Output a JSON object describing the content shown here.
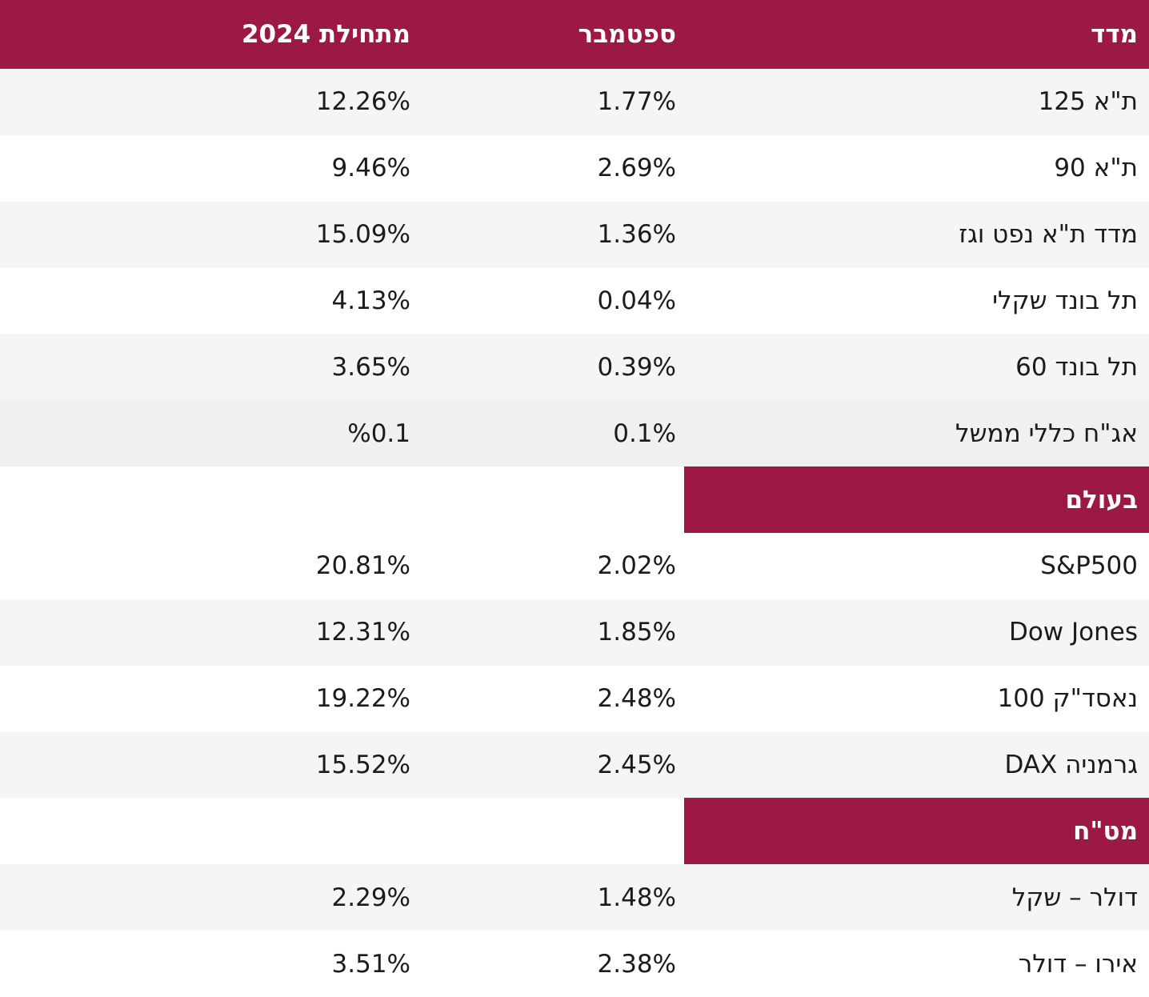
{
  "palette": {
    "header_bg": "#9b1942",
    "header_text": "#ffffff",
    "stripe": "#f5f5f5",
    "stripe_dark": "#f0f0f0",
    "row_white": "#ffffff",
    "text": "#1b1b1b"
  },
  "chart_data": {
    "type": "table",
    "direction": "rtl",
    "columns": [
      "מדד",
      "ספטמבר",
      "מתחילת 2024"
    ],
    "sections": [
      "",
      "בעולם",
      "מט\"ח"
    ],
    "rows": [
      {
        "kind": "data",
        "index": "ת\"א 125",
        "september": "1.77%",
        "ytd": "12.26%"
      },
      {
        "kind": "data",
        "index": "ת\"א 90",
        "september": "2.69%",
        "ytd": "9.46%"
      },
      {
        "kind": "data",
        "index": "מדד ת\"א נפט וגז",
        "september": "1.36%",
        "ytd": "15.09%"
      },
      {
        "kind": "data",
        "index": "תל בונד שקלי",
        "september": "0.04%",
        "ytd": "4.13%"
      },
      {
        "kind": "data",
        "index": "תל בונד 60",
        "september": "0.39%",
        "ytd": "3.65%"
      },
      {
        "kind": "data",
        "index": "אג\"ח כללי ממשל",
        "september": "0.1%",
        "ytd": "%0.1"
      },
      {
        "kind": "section",
        "index": "בעולם",
        "september": "",
        "ytd": ""
      },
      {
        "kind": "data",
        "index": "S&P500",
        "september": "2.02%",
        "ytd": "20.81%"
      },
      {
        "kind": "data",
        "index": "Dow Jones",
        "september": "1.85%",
        "ytd": "12.31%"
      },
      {
        "kind": "data",
        "index": "נאסד\"ק 100",
        "september": "2.48%",
        "ytd": "19.22%"
      },
      {
        "kind": "data",
        "index": "גרמניה DAX",
        "september": "2.45%",
        "ytd": "15.52%"
      },
      {
        "kind": "section",
        "index": "מט\"ח",
        "september": "",
        "ytd": ""
      },
      {
        "kind": "data",
        "index": "דולר – שקל",
        "september": "1.48%",
        "ytd": "2.29%"
      },
      {
        "kind": "data",
        "index": "אירו – דולר",
        "september": "2.38%",
        "ytd": "3.51%"
      }
    ]
  }
}
